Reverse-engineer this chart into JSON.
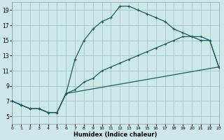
{
  "xlabel": "Humidex (Indice chaleur)",
  "bg_color": "#cce8e8",
  "grid_color": "#aacccc",
  "line_color": "#1a6060",
  "xmin": 0,
  "xmax": 23,
  "ymin": 4,
  "ymax": 20,
  "yticks": [
    5,
    7,
    9,
    11,
    13,
    15,
    17,
    19
  ],
  "xticks": [
    0,
    1,
    2,
    3,
    4,
    5,
    6,
    7,
    8,
    9,
    10,
    11,
    12,
    13,
    14,
    15,
    16,
    17,
    18,
    19,
    20,
    21,
    22,
    23
  ],
  "line1_x": [
    0,
    1,
    2,
    3,
    4,
    5,
    6,
    7,
    8,
    9,
    10,
    11,
    12,
    13,
    14,
    15,
    16,
    17,
    18,
    19,
    20,
    21,
    22,
    23
  ],
  "line1_y": [
    7,
    6.5,
    6,
    6,
    5.5,
    5.5,
    8,
    8.5,
    9.5,
    10,
    11,
    11.5,
    12,
    12.5,
    13,
    13.5,
    14,
    14.5,
    15,
    15.5,
    15.5,
    15.5,
    15,
    11.5
  ],
  "line2_x": [
    0,
    1,
    2,
    3,
    4,
    5,
    6,
    7,
    8,
    9,
    10,
    11,
    12,
    13,
    14,
    15,
    16,
    17,
    18,
    19,
    20,
    21,
    22,
    23
  ],
  "line2_y": [
    7,
    6.5,
    6,
    6,
    5.5,
    5.5,
    8,
    12.5,
    15,
    16.5,
    17.5,
    18,
    19.5,
    19.5,
    19,
    18.5,
    18,
    17.5,
    16.5,
    16,
    15.5,
    15,
    15,
    11.5
  ],
  "line3_x": [
    0,
    1,
    2,
    3,
    4,
    5,
    6,
    23
  ],
  "line3_y": [
    7,
    6.5,
    6,
    6,
    5.5,
    5.5,
    8,
    11.5
  ]
}
